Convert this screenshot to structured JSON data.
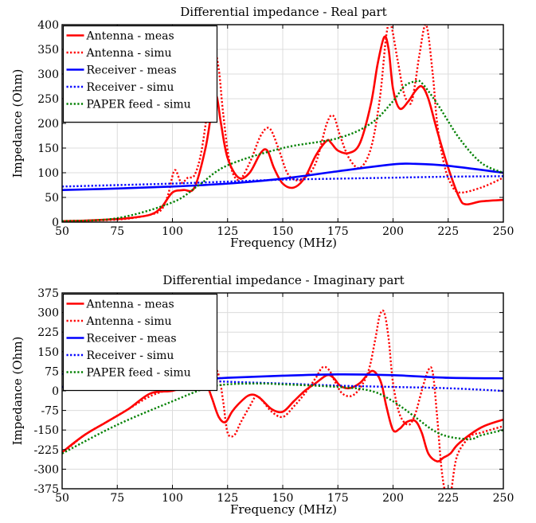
{
  "chart_data": [
    {
      "type": "line",
      "title": "Differential impedance - Real part",
      "xlabel": "Frequency (MHz)",
      "ylabel": "Impedance (Ohm)",
      "xlim": [
        50,
        250
      ],
      "ylim": [
        0,
        400
      ],
      "xticks": [
        50,
        75,
        100,
        125,
        150,
        175,
        200,
        225,
        250
      ],
      "yticks": [
        0,
        50,
        100,
        150,
        200,
        250,
        300,
        350,
        400
      ],
      "grid": true,
      "legend_position": "top-left",
      "series": [
        {
          "name": "Antenna - meas",
          "color": "#ff0000",
          "style": "solid",
          "x": [
            50,
            60,
            70,
            80,
            90,
            95,
            100,
            105,
            110,
            115,
            118,
            120,
            122,
            125,
            130,
            135,
            140,
            143,
            146,
            150,
            155,
            160,
            165,
            170,
            172,
            175,
            180,
            185,
            190,
            193,
            196,
            198,
            200,
            203,
            207,
            210,
            213,
            216,
            220,
            225,
            230,
            233,
            240,
            250
          ],
          "y": [
            2,
            3,
            5,
            8,
            15,
            30,
            60,
            65,
            70,
            150,
            230,
            255,
            200,
            130,
            90,
            100,
            140,
            145,
            110,
            78,
            70,
            90,
            135,
            165,
            160,
            145,
            140,
            160,
            240,
            320,
            375,
            350,
            270,
            230,
            245,
            265,
            275,
            250,
            185,
            110,
            50,
            36,
            42,
            45
          ]
        },
        {
          "name": "Antenna - simu",
          "color": "#ff0000",
          "style": "dotted",
          "x": [
            50,
            60,
            70,
            80,
            90,
            95,
            98,
            101,
            104,
            107,
            110,
            113,
            116,
            119,
            121,
            123,
            126,
            130,
            135,
            140,
            144,
            148,
            152,
            156,
            160,
            165,
            170,
            173,
            176,
            180,
            185,
            190,
            194,
            197,
            199,
            202,
            205,
            208,
            210,
            212,
            215,
            218,
            220,
            223,
            226,
            230,
            240,
            250
          ],
          "y": [
            2,
            3,
            4,
            7,
            15,
            25,
            55,
            105,
            80,
            90,
            95,
            140,
            230,
            335,
            310,
            220,
            120,
            85,
            120,
            175,
            190,
            150,
            100,
            85,
            90,
            120,
            200,
            215,
            175,
            130,
            110,
            150,
            250,
            380,
            400,
            330,
            260,
            240,
            280,
            340,
            400,
            300,
            200,
            120,
            80,
            60,
            70,
            90
          ]
        },
        {
          "name": "Receiver - meas",
          "color": "#0000ff",
          "style": "solid",
          "x": [
            50,
            75,
            100,
            125,
            150,
            175,
            200,
            210,
            225,
            250
          ],
          "y": [
            65,
            68,
            72,
            78,
            88,
            103,
            117,
            118,
            114,
            100
          ]
        },
        {
          "name": "Receiver - simu",
          "color": "#0000ff",
          "style": "dotted",
          "x": [
            50,
            75,
            100,
            125,
            150,
            175,
            200,
            225,
            250
          ],
          "y": [
            72,
            75,
            78,
            82,
            86,
            88,
            90,
            92,
            93
          ]
        },
        {
          "name": "PAPER feed - simu",
          "color": "#008000",
          "style": "dotted",
          "x": [
            50,
            75,
            100,
            112,
            125,
            150,
            175,
            190,
            200,
            205,
            210,
            213,
            220,
            230,
            240,
            250
          ],
          "y": [
            2,
            8,
            40,
            75,
            115,
            150,
            170,
            200,
            245,
            275,
            285,
            282,
            240,
            170,
            120,
            100
          ]
        }
      ]
    },
    {
      "type": "line",
      "title": "Differential impedance - Imaginary part",
      "xlabel": "Frequency (MHz)",
      "ylabel": "Impedance (Ohm)",
      "xlim": [
        50,
        250
      ],
      "ylim": [
        -375,
        375
      ],
      "xticks": [
        50,
        75,
        100,
        125,
        150,
        175,
        200,
        225,
        250
      ],
      "yticks": [
        -375,
        -300,
        -225,
        -150,
        -75,
        0,
        75,
        150,
        225,
        300,
        375
      ],
      "grid": true,
      "legend_position": "top-left",
      "series": [
        {
          "name": "Antenna - meas",
          "color": "#ff0000",
          "style": "solid",
          "x": [
            50,
            60,
            70,
            80,
            90,
            100,
            105,
            110,
            113,
            115,
            118,
            121,
            124,
            127,
            130,
            134,
            137,
            140,
            145,
            150,
            155,
            160,
            165,
            170,
            173,
            176,
            180,
            185,
            190,
            193,
            195,
            197,
            200,
            203,
            206,
            210,
            213,
            216,
            220,
            223,
            226,
            230,
            240,
            250
          ],
          "y": [
            -235,
            -170,
            -120,
            -70,
            -10,
            0,
            20,
            70,
            65,
            40,
            -30,
            -100,
            -120,
            -80,
            -50,
            -20,
            -15,
            -30,
            -70,
            -80,
            -40,
            0,
            30,
            60,
            50,
            20,
            10,
            30,
            75,
            60,
            20,
            -60,
            -150,
            -145,
            -120,
            -115,
            -160,
            -240,
            -270,
            -255,
            -240,
            -200,
            -140,
            -110
          ]
        },
        {
          "name": "Antenna - simu",
          "color": "#ff0000",
          "style": "dotted",
          "x": [
            50,
            60,
            70,
            80,
            90,
            100,
            105,
            110,
            115,
            118,
            121,
            123,
            125,
            128,
            131,
            135,
            138,
            141,
            145,
            150,
            155,
            160,
            165,
            168,
            171,
            174,
            177,
            181,
            185,
            189,
            192,
            194,
            196,
            198,
            200,
            203,
            207,
            210,
            213,
            216,
            218,
            220,
            222,
            224,
            226,
            229,
            235,
            240,
            250
          ],
          "y": [
            -240,
            -170,
            -120,
            -70,
            -20,
            10,
            30,
            60,
            90,
            100,
            60,
            -40,
            -160,
            -170,
            -120,
            -60,
            -20,
            -40,
            -80,
            -100,
            -60,
            -10,
            50,
            90,
            80,
            30,
            -10,
            -20,
            10,
            80,
            200,
            290,
            300,
            200,
            30,
            -90,
            -130,
            -90,
            0,
            80,
            70,
            -100,
            -300,
            -400,
            -400,
            -250,
            -175,
            -160,
            -135
          ]
        },
        {
          "name": "Receiver - meas",
          "color": "#0000ff",
          "style": "solid",
          "x": [
            50,
            75,
            100,
            125,
            150,
            175,
            200,
            225,
            250
          ],
          "y": [
            15,
            25,
            38,
            50,
            58,
            63,
            60,
            50,
            48
          ]
        },
        {
          "name": "Receiver - simu",
          "color": "#0000ff",
          "style": "dotted",
          "x": [
            50,
            75,
            100,
            125,
            150,
            175,
            200,
            225,
            250
          ],
          "y": [
            65,
            58,
            45,
            35,
            28,
            20,
            15,
            10,
            0
          ]
        },
        {
          "name": "PAPER feed - simu",
          "color": "#008000",
          "style": "dotted",
          "x": [
            50,
            75,
            100,
            115,
            125,
            140,
            150,
            175,
            190,
            200,
            210,
            218,
            225,
            235,
            240,
            250
          ],
          "y": [
            -240,
            -130,
            -40,
            10,
            25,
            28,
            25,
            15,
            0,
            -40,
            -100,
            -150,
            -175,
            -185,
            -170,
            -150
          ]
        }
      ]
    }
  ]
}
